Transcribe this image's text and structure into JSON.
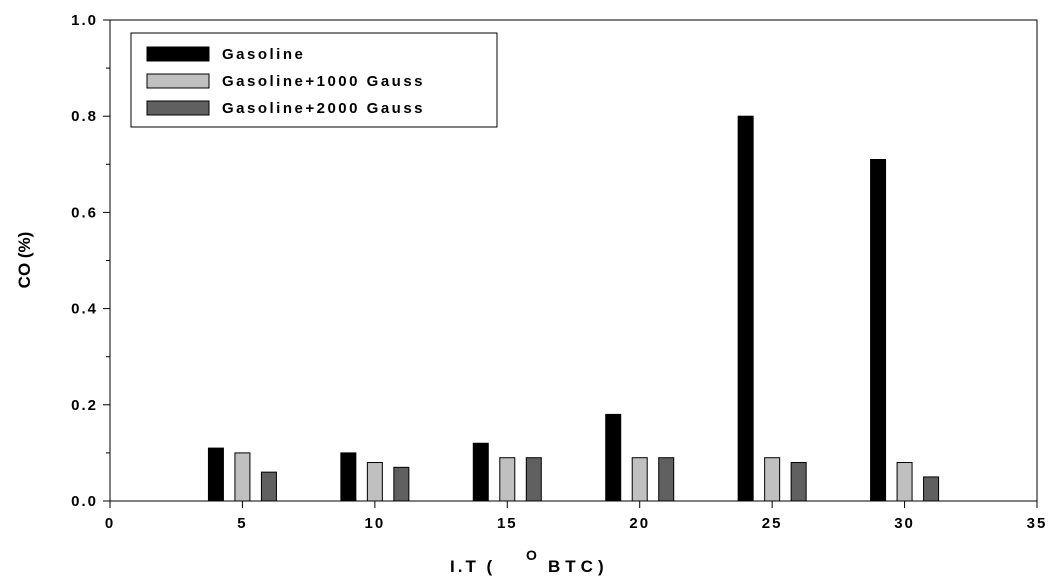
{
  "chart_data": {
    "type": "bar",
    "xlabel_main": "I.T (",
    "xlabel_sup": "O",
    "xlabel_tail": "BTC)",
    "ylabel": "CO (%)",
    "xlim": [
      0,
      35
    ],
    "ylim": [
      0,
      1.0
    ],
    "x_ticks": [
      "0",
      "5",
      "10",
      "15",
      "20",
      "25",
      "30",
      "35"
    ],
    "y_ticks": [
      "0.0",
      "0.2",
      "0.4",
      "0.6",
      "0.8",
      "1.0"
    ],
    "categories": [
      5,
      10,
      15,
      20,
      25,
      30
    ],
    "series": [
      {
        "name": "Gasoline",
        "color": "#000000",
        "values": [
          0.11,
          0.1,
          0.12,
          0.18,
          0.8,
          0.71
        ]
      },
      {
        "name": "Gasoline+1000 Gauss",
        "color": "#c0c0c0",
        "values": [
          0.1,
          0.08,
          0.09,
          0.09,
          0.09,
          0.08
        ]
      },
      {
        "name": "Gasoline+2000 Gauss",
        "color": "#606060",
        "values": [
          0.06,
          0.07,
          0.09,
          0.09,
          0.08,
          0.05
        ]
      }
    ],
    "legend_position": "top-left",
    "grid": false
  }
}
